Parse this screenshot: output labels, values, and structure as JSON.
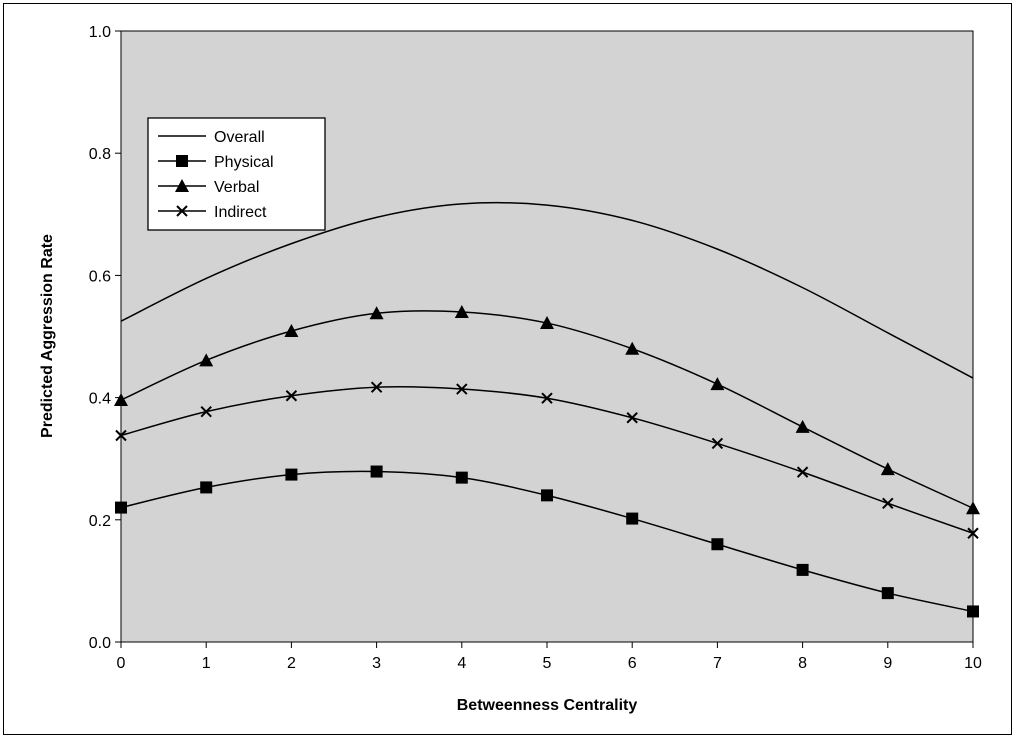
{
  "chart_data": {
    "type": "line",
    "xlabel": "Betweenness Centrality",
    "ylabel": "Predicted Aggression Rate",
    "x": [
      0,
      1,
      2,
      3,
      4,
      5,
      6,
      7,
      8,
      9,
      10
    ],
    "xlim": [
      0,
      10
    ],
    "ylim": [
      0.0,
      1.0
    ],
    "x_ticks": [
      "0",
      "1",
      "2",
      "3",
      "4",
      "5",
      "6",
      "7",
      "8",
      "9",
      "10"
    ],
    "y_ticks": [
      "0.0",
      "0.2",
      "0.4",
      "0.6",
      "0.8",
      "1.0"
    ],
    "grid": false,
    "legend_position": "top-left",
    "plot_background": "#d3d3d3",
    "series": [
      {
        "name": "Overall",
        "marker": "none",
        "values": [
          0.525,
          0.595,
          0.652,
          0.695,
          0.717,
          0.715,
          0.69,
          0.643,
          0.58,
          0.506,
          0.432
        ]
      },
      {
        "name": "Physical",
        "marker": "square",
        "values": [
          0.22,
          0.253,
          0.274,
          0.279,
          0.269,
          0.24,
          0.202,
          0.16,
          0.118,
          0.08,
          0.05
        ]
      },
      {
        "name": "Verbal",
        "marker": "triangle",
        "values": [
          0.396,
          0.461,
          0.509,
          0.538,
          0.54,
          0.522,
          0.48,
          0.422,
          0.352,
          0.283,
          0.219
        ]
      },
      {
        "name": "Indirect",
        "marker": "x",
        "values": [
          0.338,
          0.377,
          0.403,
          0.417,
          0.414,
          0.399,
          0.367,
          0.325,
          0.278,
          0.227,
          0.178
        ]
      }
    ]
  }
}
